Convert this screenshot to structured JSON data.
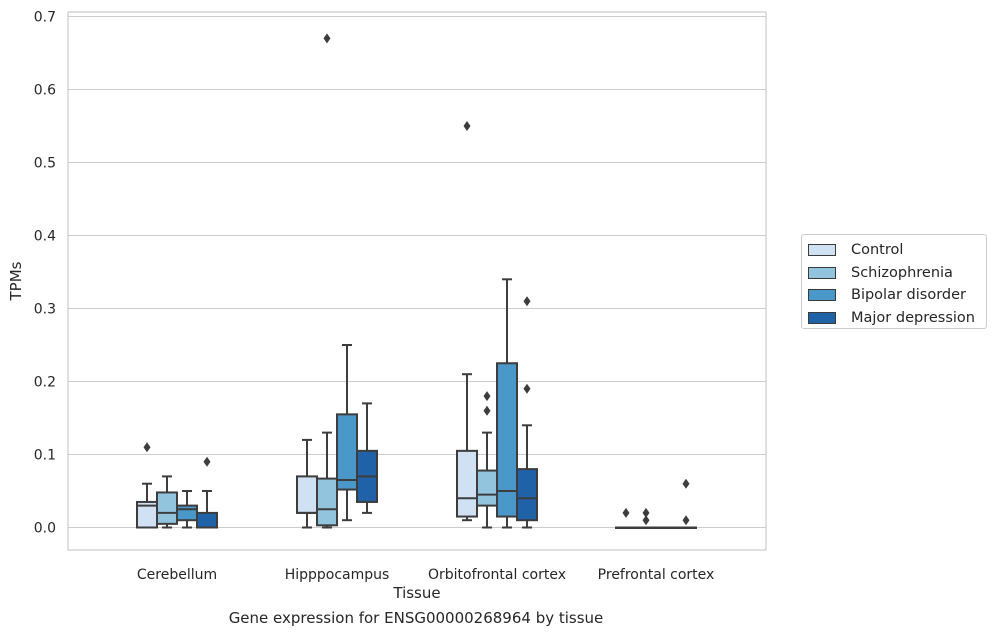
{
  "chart_data": {
    "type": "box",
    "title": "",
    "caption": "Gene expression for ENSG00000268964 by tissue",
    "xlabel": "Tissue",
    "ylabel": "TPMs",
    "ylim": [
      -0.032,
      0.705
    ],
    "yticks": [
      0.0,
      0.1,
      0.2,
      0.3,
      0.4,
      0.5,
      0.6,
      0.7
    ],
    "ytick_labels": [
      "0.0",
      "0.1",
      "0.2",
      "0.3",
      "0.4",
      "0.5",
      "0.6",
      "0.7"
    ],
    "grid": "horizontal",
    "legend_position": "right",
    "categories": [
      "Cerebellum",
      "Hipppocampus",
      "Orbitofrontal cortex",
      "Prefrontal cortex"
    ],
    "series": [
      {
        "name": "Control",
        "color": "#cfe1f2",
        "boxes": [
          {
            "whisker_low": 0.0,
            "q1": 0.0,
            "median": 0.03,
            "q3": 0.035,
            "whisker_high": 0.06,
            "outliers": [
              0.11
            ]
          },
          {
            "whisker_low": 0.0,
            "q1": 0.02,
            "median": 0.02,
            "q3": 0.07,
            "whisker_high": 0.12,
            "outliers": []
          },
          {
            "whisker_low": 0.01,
            "q1": 0.015,
            "median": 0.04,
            "q3": 0.105,
            "whisker_high": 0.21,
            "outliers": [
              0.55
            ]
          },
          {
            "whisker_low": 0.0,
            "q1": 0.0,
            "median": 0.0,
            "q3": 0.0,
            "whisker_high": 0.0,
            "outliers": [
              0.02
            ]
          }
        ]
      },
      {
        "name": "Schizophrenia",
        "color": "#93c4de",
        "boxes": [
          {
            "whisker_low": 0.0,
            "q1": 0.005,
            "median": 0.02,
            "q3": 0.048,
            "whisker_high": 0.07,
            "outliers": []
          },
          {
            "whisker_low": 0.0,
            "q1": 0.003,
            "median": 0.025,
            "q3": 0.067,
            "whisker_high": 0.13,
            "outliers": [
              0.67
            ]
          },
          {
            "whisker_low": 0.0,
            "q1": 0.03,
            "median": 0.045,
            "q3": 0.078,
            "whisker_high": 0.13,
            "outliers": [
              0.16,
              0.18
            ]
          },
          {
            "whisker_low": 0.0,
            "q1": 0.0,
            "median": 0.0,
            "q3": 0.0,
            "whisker_high": 0.0,
            "outliers": [
              0.01,
              0.02
            ]
          }
        ]
      },
      {
        "name": "Bipolar disorder",
        "color": "#4a98c9",
        "boxes": [
          {
            "whisker_low": 0.0,
            "q1": 0.01,
            "median": 0.025,
            "q3": 0.03,
            "whisker_high": 0.05,
            "outliers": []
          },
          {
            "whisker_low": 0.01,
            "q1": 0.052,
            "median": 0.065,
            "q3": 0.155,
            "whisker_high": 0.25,
            "outliers": []
          },
          {
            "whisker_low": 0.0,
            "q1": 0.015,
            "median": 0.05,
            "q3": 0.225,
            "whisker_high": 0.34,
            "outliers": []
          },
          {
            "whisker_low": 0.0,
            "q1": 0.0,
            "median": 0.0,
            "q3": 0.0,
            "whisker_high": 0.0,
            "outliers": []
          }
        ]
      },
      {
        "name": "Major depression",
        "color": "#1f62a8",
        "boxes": [
          {
            "whisker_low": 0.0,
            "q1": 0.0,
            "median": 0.0,
            "q3": 0.02,
            "whisker_high": 0.05,
            "outliers": [
              0.09
            ]
          },
          {
            "whisker_low": 0.02,
            "q1": 0.035,
            "median": 0.07,
            "q3": 0.105,
            "whisker_high": 0.17,
            "outliers": []
          },
          {
            "whisker_low": 0.0,
            "q1": 0.01,
            "median": 0.04,
            "q3": 0.08,
            "whisker_high": 0.14,
            "outliers": [
              0.19,
              0.31
            ]
          },
          {
            "whisker_low": 0.0,
            "q1": 0.0,
            "median": 0.0,
            "q3": 0.0,
            "whisker_high": 0.0,
            "outliers": [
              0.01,
              0.06
            ]
          }
        ]
      }
    ]
  }
}
